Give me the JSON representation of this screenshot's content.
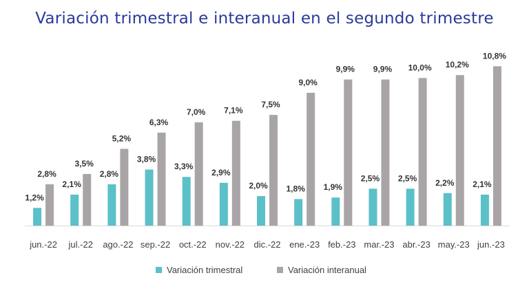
{
  "chart_data": {
    "type": "bar",
    "title": "Variación trimestral e interanual en el segundo trimestre",
    "xlabel": "",
    "ylabel": "",
    "ylim": [
      0,
      11
    ],
    "grid": false,
    "legend_position": "bottom",
    "categories": [
      "jun.-22",
      "jul.-22",
      "ago.-22",
      "sep.-22",
      "oct.-22",
      "nov.-22",
      "dic.-22",
      "ene.-23",
      "feb.-23",
      "mar.-23",
      "abr.-23",
      "may.-23",
      "jun.-23"
    ],
    "series": [
      {
        "name": "Variación trimestral",
        "color": "#5bc0c8",
        "values": [
          1.2,
          2.1,
          2.8,
          3.8,
          3.3,
          2.9,
          2.0,
          1.8,
          1.9,
          2.5,
          2.5,
          2.2,
          2.1
        ],
        "labels": [
          "1,2%",
          "2,1%",
          "2,8%",
          "3,8%",
          "3,3%",
          "2,9%",
          "2,0%",
          "1,8%",
          "1,9%",
          "2,5%",
          "2,5%",
          "2,2%",
          "2,1%"
        ]
      },
      {
        "name": "Variación interanual",
        "color": "#a9a5a6",
        "values": [
          2.8,
          3.5,
          5.2,
          6.3,
          7.0,
          7.1,
          7.5,
          9.0,
          9.9,
          9.9,
          10.0,
          10.2,
          10.8
        ],
        "labels": [
          "2,8%",
          "3,5%",
          "5,2%",
          "6,3%",
          "7,0%",
          "7,1%",
          "7,5%",
          "9,0%",
          "9,9%",
          "9,9%",
          "10,0%",
          "10,2%",
          "10,8%"
        ]
      }
    ]
  }
}
